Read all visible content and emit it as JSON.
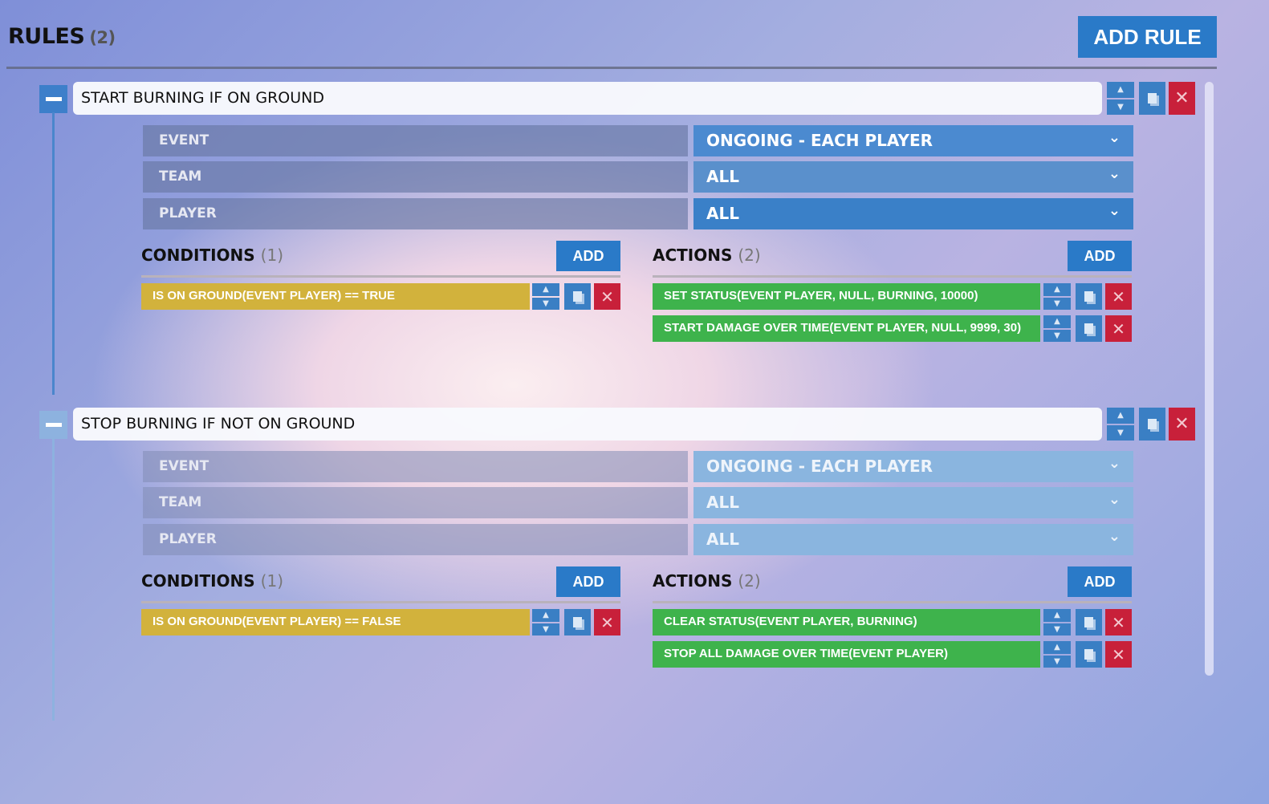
{
  "header": {
    "title": "RULES",
    "count": "(2)",
    "add_rule_label": "ADD RULE"
  },
  "icons": {
    "collapse": "minus-icon",
    "move_up": "▲",
    "move_down": "▼",
    "copy": "copy-icon",
    "delete": "✕",
    "chevron": "⌄"
  },
  "colors": {
    "accent": "#2a7ac8",
    "delete": "#c8203a",
    "condition": "#d2b23c",
    "action": "#3eb34c"
  },
  "rules": [
    {
      "title": "START BURNING IF ON GROUND",
      "fields": [
        {
          "label": "EVENT",
          "value": "ONGOING - EACH PLAYER"
        },
        {
          "label": "TEAM",
          "value": "ALL"
        },
        {
          "label": "PLAYER",
          "value": "ALL"
        }
      ],
      "conditions_label": "CONDITIONS",
      "conditions_count": "(1)",
      "add_label": "ADD",
      "conditions": [
        "IS ON GROUND(EVENT PLAYER) == TRUE"
      ],
      "actions_label": "ACTIONS",
      "actions_count": "(2)",
      "actions": [
        "SET STATUS(EVENT PLAYER, NULL, BURNING, 10000)",
        "START DAMAGE OVER TIME(EVENT PLAYER, NULL, 9999, 30)"
      ]
    },
    {
      "title": "STOP BURNING IF NOT ON GROUND",
      "fields": [
        {
          "label": "EVENT",
          "value": "ONGOING - EACH PLAYER"
        },
        {
          "label": "TEAM",
          "value": "ALL"
        },
        {
          "label": "PLAYER",
          "value": "ALL"
        }
      ],
      "conditions_label": "CONDITIONS",
      "conditions_count": "(1)",
      "add_label": "ADD",
      "conditions": [
        "IS ON GROUND(EVENT PLAYER) == FALSE"
      ],
      "actions_label": "ACTIONS",
      "actions_count": "(2)",
      "actions": [
        "CLEAR STATUS(EVENT PLAYER, BURNING)",
        "STOP ALL DAMAGE OVER TIME(EVENT PLAYER)"
      ]
    }
  ]
}
